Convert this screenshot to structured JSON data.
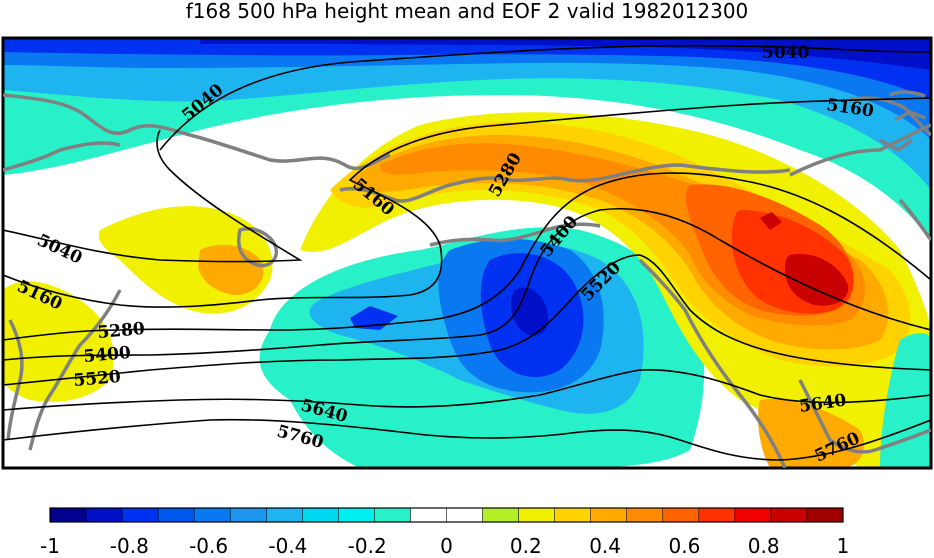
{
  "title": "f168 500 hPa height mean and EOF 2 valid 1982012300",
  "colorbar": {
    "colors": [
      "#00008c",
      "#0010c8",
      "#0030f0",
      "#0058f0",
      "#0a78f0",
      "#1e96f0",
      "#1eb4f0",
      "#00d8f0",
      "#00f0f0",
      "#28f0c8",
      "#ffffff",
      "#ffffff",
      "#b4f028",
      "#f0f000",
      "#ffd200",
      "#ffaa00",
      "#ff8c00",
      "#ff6400",
      "#ff3200",
      "#f00000",
      "#c80000",
      "#a00000"
    ],
    "tick_labels": [
      "-1",
      "-0.8",
      "-0.6",
      "-0.4",
      "-0.2",
      "0",
      "0.2",
      "0.4",
      "0.6",
      "0.8",
      "1"
    ]
  },
  "contour_labels": {
    "c5040_top": "5040",
    "c5040_left": "5040",
    "c5040_mid": "5040",
    "c5160_right": "5160",
    "c5160_mid": "5160",
    "c5160_left": "5160",
    "c5280_mid": "5280",
    "c5280_left": "5280",
    "c5400_mid": "5400",
    "c5400_left": "5400",
    "c5520_mid": "5520",
    "c5520_left": "5520",
    "c5640_mid": "5640",
    "c5640_right": "5640",
    "c5760_mid": "5760",
    "c5760_right": "5760"
  }
}
